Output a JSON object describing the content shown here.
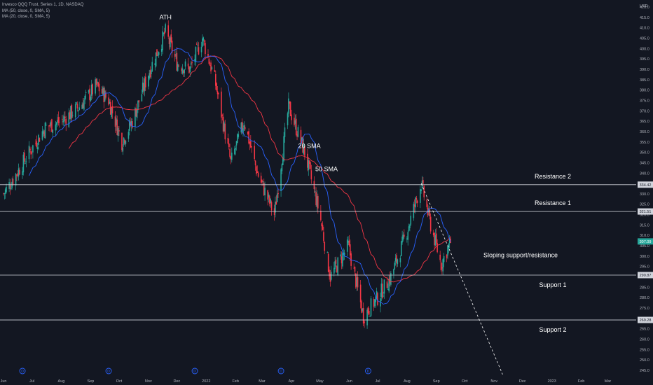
{
  "legend": {
    "title": "Invesco QQQ Trust, Series 1, 1D, NASDAQ",
    "ma1": "MA (50, close, 0, SMA, 5)",
    "ma2": "MA (20, close, 0, SMA, 5)"
  },
  "chart_data": {
    "type": "candlestick",
    "currency": "USD",
    "ylim": [
      243,
      422
    ],
    "y_ticks": [
      245,
      250,
      255,
      260,
      265,
      270,
      275,
      280,
      285,
      290,
      295,
      300,
      305,
      310,
      315,
      320,
      325,
      330,
      335,
      340,
      345,
      350,
      355,
      360,
      365,
      370,
      375,
      380,
      385,
      390,
      395,
      400,
      405,
      410,
      415,
      420
    ],
    "x_ticks": [
      "Jun",
      "Jul",
      "Aug",
      "Sep",
      "Oct",
      "Nov",
      "Dec",
      "2022",
      "Feb",
      "Mar",
      "Apr",
      "May",
      "Jun",
      "Jul",
      "Aug",
      "Sep",
      "Oct",
      "Nov",
      "Dec",
      "2023",
      "Feb",
      "Mar"
    ],
    "x_range": [
      "2021-06-01",
      "2023-03-31"
    ],
    "series": [
      {
        "name": "Price (daily candles)",
        "anchors": [
          [
            "2021-06-01",
            330
          ],
          [
            "2021-06-15",
            340
          ],
          [
            "2021-07-01",
            352
          ],
          [
            "2021-07-15",
            362
          ],
          [
            "2021-08-01",
            365
          ],
          [
            "2021-08-20",
            372
          ],
          [
            "2021-09-07",
            382
          ],
          [
            "2021-09-20",
            375
          ],
          [
            "2021-10-04",
            355
          ],
          [
            "2021-10-15",
            365
          ],
          [
            "2021-11-01",
            388
          ],
          [
            "2021-11-19",
            408
          ],
          [
            "2021-12-01",
            393
          ],
          [
            "2021-12-15",
            390
          ],
          [
            "2021-12-28",
            405
          ],
          [
            "2022-01-10",
            385
          ],
          [
            "2022-01-27",
            345
          ],
          [
            "2022-02-10",
            365
          ],
          [
            "2022-02-24",
            340
          ],
          [
            "2022-03-14",
            320
          ],
          [
            "2022-03-29",
            372
          ],
          [
            "2022-04-15",
            350
          ],
          [
            "2022-05-01",
            320
          ],
          [
            "2022-05-12",
            290
          ],
          [
            "2022-05-31",
            305
          ],
          [
            "2022-06-16",
            271
          ],
          [
            "2022-07-01",
            280
          ],
          [
            "2022-07-15",
            290
          ],
          [
            "2022-08-01",
            312
          ],
          [
            "2022-08-16",
            335
          ],
          [
            "2022-08-26",
            315
          ],
          [
            "2022-09-06",
            296
          ],
          [
            "2022-09-16",
            307
          ]
        ]
      },
      {
        "name": "50 SMA",
        "color": "#f23645"
      },
      {
        "name": "20 SMA",
        "color": "#2962ff"
      }
    ],
    "levels": [
      {
        "name": "Resistance 2",
        "value": 334.42,
        "tag": "334.42"
      },
      {
        "name": "Resistance 1",
        "value": 321.51,
        "tag": "321.51"
      },
      {
        "name": "Support 1",
        "value": 290.87,
        "tag": "290.87"
      },
      {
        "name": "Support 2",
        "value": 269.28,
        "tag": "269.28"
      }
    ],
    "current_price": {
      "value": 307.09,
      "tag": "307.09",
      "color": "#26a69a"
    },
    "sloping_line": {
      "label": "Sloping support/resistance",
      "from": [
        "2022-08-16",
        335
      ],
      "to": [
        "2022-11-10",
        243
      ]
    },
    "annotations": [
      {
        "text": "ATH",
        "date": "2021-11-19",
        "value": 414
      },
      {
        "text": "20 SMA",
        "date": "2022-04-20",
        "value": 352,
        "color": "#2962ff"
      },
      {
        "text": "50 SMA",
        "date": "2022-05-08",
        "value": 341,
        "color": "#f23645"
      }
    ],
    "dividend_markers": [
      "2021-06-21",
      "2021-09-20",
      "2021-12-20",
      "2022-03-21",
      "2022-06-21"
    ],
    "dividend_glyph": "D"
  },
  "colors": {
    "up": "#26a69a",
    "down": "#f23645",
    "sma50": "#f23645",
    "sma20": "#2962ff",
    "level": "#d1d4dc",
    "text": "#b2b5be"
  }
}
